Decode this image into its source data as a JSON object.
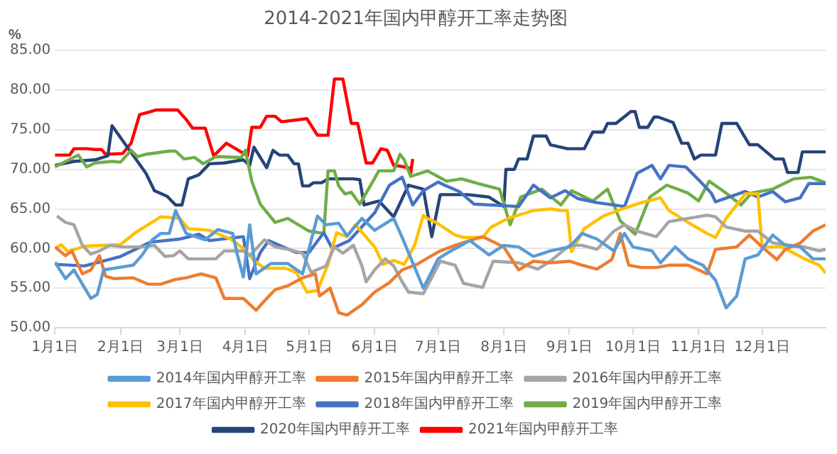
{
  "chart_data": {
    "type": "line",
    "title": "2014-2021年国内甲醇开工率走势图",
    "ylabel": "%",
    "xlim": [
      "--01-01",
      "--12-31"
    ],
    "ylim": [
      50,
      85
    ],
    "xticks": [
      {
        "value": "--01-01",
        "label": "1月1日"
      },
      {
        "value": "--02-01",
        "label": "2月1日"
      },
      {
        "value": "--03-01",
        "label": "3月1日"
      },
      {
        "value": "--04-01",
        "label": "4月1日"
      },
      {
        "value": "--05-01",
        "label": "5月1日"
      },
      {
        "value": "--06-01",
        "label": "6月1日"
      },
      {
        "value": "--07-01",
        "label": "7月1日"
      },
      {
        "value": "--08-01",
        "label": "8月1日"
      },
      {
        "value": "--09-01",
        "label": "9月1日"
      },
      {
        "value": "--10-01",
        "label": "10月1日"
      },
      {
        "value": "--11-01",
        "label": "11月1日"
      },
      {
        "value": "--12-01",
        "label": "12月1日"
      }
    ],
    "yticks": [
      {
        "value": 50,
        "label": "50.00"
      },
      {
        "value": 55,
        "label": "55.00"
      },
      {
        "value": 60,
        "label": "60.00"
      },
      {
        "value": 65,
        "label": "65.00"
      },
      {
        "value": 70,
        "label": "70.00"
      },
      {
        "value": 75,
        "label": "75.00"
      },
      {
        "value": 80,
        "label": "80.00"
      },
      {
        "value": 85,
        "label": "85.00"
      }
    ],
    "grid": "y",
    "legend": "bottom",
    "marker": "none",
    "line_style": "solid",
    "series": [
      {
        "name": "2014年国内甲醇开工率",
        "color": "#5b9bd5",
        "x": [
          "--01-01",
          "--01-06",
          "--01-10",
          "--01-14",
          "--01-18",
          "--01-21",
          "--01-24",
          "--01-31",
          "--02-07",
          "--02-11",
          "--02-16",
          "--02-20",
          "--02-24",
          "--02-27",
          "--03-04",
          "--03-13",
          "--03-19",
          "--03-26",
          "--03-28",
          "--03-31",
          "--04-03",
          "--04-06",
          "--04-13",
          "--04-21",
          "--04-28",
          "--05-02",
          "--05-05",
          "--05-09",
          "--05-15",
          "--05-19",
          "--05-26",
          "--06-01",
          "--06-10",
          "--06-14",
          "--06-24",
          "--07-01",
          "--07-07",
          "--07-16",
          "--07-25",
          "--08-01",
          "--08-08",
          "--08-15",
          "--08-23",
          "--09-01",
          "--09-07",
          "--09-14",
          "--09-22",
          "--09-27",
          "--10-01",
          "--10-10",
          "--10-14",
          "--10-21",
          "--10-27",
          "--11-03",
          "--11-09",
          "--11-14",
          "--11-19",
          "--11-23",
          "--11-29",
          "--12-06",
          "--12-12",
          "--12-19",
          "--12-25",
          "--12-31"
        ],
        "values": [
          58.3,
          56.2,
          57.3,
          55.5,
          53.7,
          54.2,
          57.3,
          57.6,
          57.9,
          59.1,
          61.1,
          61.9,
          61.9,
          64.8,
          61.9,
          61.1,
          62.4,
          61.9,
          59.4,
          56.4,
          63,
          56.8,
          58.1,
          58.1,
          56.8,
          61,
          64.1,
          63,
          63.2,
          61.6,
          63.8,
          62.3,
          63.8,
          61.4,
          55,
          58.7,
          59.7,
          61,
          59.2,
          60.4,
          60.2,
          59,
          59.7,
          60.2,
          61.9,
          61.2,
          59.7,
          61.9,
          60.2,
          59.7,
          58.2,
          60.2,
          58.7,
          57.9,
          56,
          52.5,
          54,
          58.7,
          59.2,
          61.7,
          60.4,
          60.2,
          58.7,
          58.7
        ]
      },
      {
        "name": "2015年国内甲醇开工率",
        "color": "#ed7d31",
        "x": [
          "--01-01",
          "--01-06",
          "--01-09",
          "--01-14",
          "--01-18",
          "--01-22",
          "--01-25",
          "--01-29",
          "--02-07",
          "--02-14",
          "--02-20",
          "--02-27",
          "--03-04",
          "--03-11",
          "--03-18",
          "--03-22",
          "--03-31",
          "--04-06",
          "--04-10",
          "--04-15",
          "--04-21",
          "--04-28",
          "--05-04",
          "--05-06",
          "--05-11",
          "--05-15",
          "--05-19",
          "--05-26",
          "--06-01",
          "--06-08",
          "--06-14",
          "--06-21",
          "--06-28",
          "--07-02",
          "--07-09",
          "--07-16",
          "--07-22",
          "--08-01",
          "--08-08",
          "--08-15",
          "--08-23",
          "--09-01",
          "--09-07",
          "--09-14",
          "--09-21",
          "--09-25",
          "--09-29",
          "--10-05",
          "--10-12",
          "--10-18",
          "--10-27",
          "--11-05",
          "--11-09",
          "--11-19",
          "--11-25",
          "--12-01",
          "--12-08",
          "--12-12",
          "--12-19",
          "--12-25",
          "--12-31"
        ],
        "values": [
          60.2,
          59.1,
          59.7,
          56.8,
          57.3,
          59.1,
          56.5,
          56.2,
          56.3,
          55.5,
          55.5,
          56.1,
          56.3,
          56.8,
          56.3,
          53.7,
          53.7,
          52.2,
          53.4,
          54.8,
          55.3,
          56.3,
          56.8,
          54,
          55,
          51.9,
          51.6,
          52.9,
          54.5,
          55.7,
          57.3,
          58,
          59.1,
          59.7,
          60.4,
          61,
          61.5,
          60.2,
          57.3,
          58.4,
          58.2,
          58.4,
          57.9,
          57.4,
          58.6,
          61.9,
          57.9,
          57.6,
          57.6,
          57.9,
          57.9,
          56.8,
          59.9,
          60.2,
          61.7,
          60.2,
          58.6,
          59.9,
          60.7,
          62.2,
          63
        ]
      },
      {
        "name": "2016年国内甲醇开工率",
        "color": "#a5a5a5",
        "x": [
          "--01-02",
          "--01-06",
          "--01-10",
          "--01-14",
          "--01-18",
          "--01-22",
          "--01-27",
          "--02-02",
          "--02-11",
          "--02-17",
          "--02-22",
          "--02-26",
          "--03-01",
          "--03-05",
          "--03-18",
          "--03-22",
          "--03-31",
          "--04-03",
          "--04-10",
          "--04-15",
          "--04-21",
          "--04-28",
          "--05-02",
          "--05-09",
          "--05-13",
          "--05-17",
          "--05-22",
          "--05-26",
          "--05-28",
          "--06-01",
          "--06-06",
          "--06-10",
          "--06-14",
          "--06-17",
          "--06-24",
          "--07-02",
          "--07-09",
          "--07-13",
          "--07-22",
          "--07-27",
          "--08-08",
          "--08-17",
          "--08-23",
          "--09-01",
          "--09-07",
          "--09-14",
          "--09-22",
          "--09-27",
          "--10-03",
          "--10-12",
          "--10-18",
          "--10-27",
          "--11-05",
          "--11-09",
          "--11-14",
          "--11-23",
          "--11-29",
          "--12-06",
          "--12-15",
          "--12-21",
          "--12-28",
          "--12-31"
        ],
        "values": [
          64.1,
          63.3,
          63,
          60.4,
          59.3,
          59.7,
          60.4,
          60.2,
          60.2,
          60.4,
          59,
          59.1,
          59.7,
          58.7,
          58.7,
          59.7,
          59.7,
          59.1,
          61.1,
          60.2,
          59.9,
          59.4,
          57,
          57.8,
          60.2,
          59.4,
          60.4,
          57.8,
          55.8,
          57.3,
          58.7,
          57.8,
          55.8,
          54.5,
          54.3,
          58.4,
          57.9,
          55.6,
          55.1,
          58.4,
          58.2,
          57.4,
          58.4,
          60.4,
          60.4,
          59.9,
          62.2,
          63,
          62.2,
          61.5,
          63.4,
          63.8,
          64.2,
          64,
          62.7,
          62.2,
          62.2,
          60.7,
          60.4,
          60.2,
          59.7,
          59.9
        ]
      },
      {
        "name": "2017年国内甲醇开工率",
        "color": "#ffc000",
        "x": [
          "--01-01",
          "--01-04",
          "--01-07",
          "--01-15",
          "--02-01",
          "--02-08",
          "--02-14",
          "--02-20",
          "--03-01",
          "--03-05",
          "--03-15",
          "--03-25",
          "--04-01",
          "--04-05",
          "--04-10",
          "--04-20",
          "--04-25",
          "--04-30",
          "--05-05",
          "--05-10",
          "--05-14",
          "--05-19",
          "--05-23",
          "--06-01",
          "--06-05",
          "--06-10",
          "--06-15",
          "--06-20",
          "--06-24",
          "--06-26",
          "--06-30",
          "--07-09",
          "--07-13",
          "--07-22",
          "--07-26",
          "--08-03",
          "--08-15",
          "--08-23",
          "--08-28",
          "--08-31",
          "--09-02",
          "--09-08",
          "--09-17",
          "--09-26",
          "--10-05",
          "--10-14",
          "--10-18",
          "--10-27",
          "--11-05",
          "--11-09",
          "--11-14",
          "--11-23",
          "--11-29",
          "--12-01",
          "--12-10",
          "--12-14",
          "--12-21",
          "--12-28",
          "--12-31"
        ],
        "values": [
          60,
          60.5,
          59.6,
          60.3,
          60.5,
          62,
          63,
          64,
          63.8,
          62.5,
          62.3,
          61.2,
          59.8,
          58.5,
          57.5,
          57.5,
          57,
          54.5,
          54.7,
          58,
          62,
          61.5,
          63,
          60.2,
          58,
          58.5,
          58,
          60.5,
          64.2,
          63.8,
          63.3,
          61.7,
          61.4,
          61.4,
          62.7,
          63.8,
          64.8,
          65,
          64.8,
          64.8,
          59.6,
          62.5,
          64.1,
          65,
          65.8,
          66.4,
          64.8,
          63.3,
          61.9,
          61.4,
          63.8,
          66.9,
          66.9,
          60.2,
          60.2,
          59.7,
          58.7,
          57.9,
          56.9
        ]
      },
      {
        "name": "2018年国内甲醇开工率",
        "color": "#4472c4",
        "x": [
          "--01-01",
          "--01-15",
          "--02-01",
          "--02-15",
          "--03-01",
          "--03-10",
          "--03-15",
          "--03-31",
          "--04-03",
          "--04-08",
          "--04-12",
          "--04-25",
          "--05-01",
          "--05-08",
          "--05-12",
          "--05-20",
          "--06-01",
          "--06-08",
          "--06-14",
          "--06-19",
          "--06-24",
          "--07-01",
          "--07-04",
          "--07-11",
          "--07-18",
          "--08-08",
          "--08-15",
          "--08-23",
          "--08-30",
          "--09-05",
          "--09-14",
          "--09-27",
          "--10-03",
          "--10-10",
          "--10-14",
          "--10-18",
          "--10-26",
          "--11-02",
          "--11-07",
          "--11-09",
          "--11-23",
          "--11-29",
          "--12-06",
          "--12-12",
          "--12-19",
          "--12-23",
          "--12-31"
        ],
        "values": [
          58,
          57.8,
          59,
          60.8,
          61.2,
          61.8,
          61,
          61.5,
          56.2,
          59.5,
          61,
          59.5,
          59.5,
          62,
          60,
          61,
          64.5,
          68,
          69,
          65.5,
          67.3,
          68.4,
          68,
          67.2,
          65.6,
          65.3,
          68,
          66.4,
          67.3,
          66.3,
          65.8,
          65.3,
          69.5,
          70.5,
          68.8,
          70.5,
          70.3,
          68.4,
          67,
          65.9,
          67.2,
          66.5,
          67.2,
          65.9,
          66.4,
          68.2,
          68.2
        ]
      },
      {
        "name": "2019年国内甲醇开工率",
        "color": "#70ad47",
        "x": [
          "--01-01",
          "--01-12",
          "--01-16",
          "--01-20",
          "--01-28",
          "--02-01",
          "--02-06",
          "--02-09",
          "--02-13",
          "--02-24",
          "--02-27",
          "--03-03",
          "--03-08",
          "--03-12",
          "--03-18",
          "--03-30",
          "--04-01",
          "--04-04",
          "--04-08",
          "--04-15",
          "--04-21",
          "--05-01",
          "--05-08",
          "--05-10",
          "--05-13",
          "--05-15",
          "--05-18",
          "--05-21",
          "--05-25",
          "--06-03",
          "--06-10",
          "--06-13",
          "--06-15",
          "--06-18",
          "--06-26",
          "--07-05",
          "--07-12",
          "--07-20",
          "--07-30",
          "--08-04",
          "--08-09",
          "--08-19",
          "--08-28",
          "--09-02",
          "--09-12",
          "--09-19",
          "--09-25",
          "--10-02",
          "--10-09",
          "--10-17",
          "--10-27",
          "--11-01",
          "--11-06",
          "--11-14",
          "--11-21",
          "--11-26",
          "--12-06",
          "--12-16",
          "--12-24",
          "--12-31"
        ],
        "values": [
          70.3,
          71.8,
          70.3,
          70.8,
          71,
          70.9,
          72.4,
          71.6,
          71.9,
          72.3,
          72.3,
          71.3,
          71.5,
          70.7,
          71.6,
          71.5,
          72.4,
          68.5,
          65.6,
          63.3,
          63.8,
          62.2,
          61.9,
          69.8,
          69.8,
          67.9,
          66.9,
          67.1,
          65.6,
          69.8,
          69.8,
          71.9,
          71.2,
          69.1,
          69.8,
          68.5,
          68.8,
          68.2,
          67.5,
          63,
          66.5,
          67.5,
          65.5,
          67.3,
          66,
          67.5,
          63.5,
          61.8,
          66.5,
          68,
          67,
          66,
          68.5,
          67,
          65.5,
          67,
          67.5,
          68.8,
          69,
          68.3
        ]
      },
      {
        "name": "2020年国内甲醇开工率",
        "color": "#264478",
        "x": [
          "--01-01",
          "--01-10",
          "--01-20",
          "--01-26",
          "--01-28",
          "--02-05",
          "--02-13",
          "--02-17",
          "--02-23",
          "--02-27",
          "--03-02",
          "--03-05",
          "--03-10",
          "--03-15",
          "--03-22",
          "--03-31",
          "--04-03",
          "--04-05",
          "--04-11",
          "--04-14",
          "--04-17",
          "--04-21",
          "--04-24",
          "--04-26",
          "--04-28",
          "--05-01",
          "--05-03",
          "--05-07",
          "--05-10",
          "--05-22",
          "--05-25",
          "--05-27",
          "--06-03",
          "--06-10",
          "--06-17",
          "--06-24",
          "--06-28",
          "--07-02",
          "--07-15",
          "--07-25",
          "--08-01",
          "--08-02",
          "--08-06",
          "--08-08",
          "--08-12",
          "--08-15",
          "--08-21",
          "--08-23",
          "--08-31",
          "--09-08",
          "--09-12",
          "--09-17",
          "--09-19",
          "--09-23",
          "--09-30",
          "--10-02",
          "--10-04",
          "--10-08",
          "--10-11",
          "--10-13",
          "--10-20",
          "--10-24",
          "--10-27",
          "--10-30",
          "--11-02",
          "--11-09",
          "--11-12",
          "--11-19",
          "--11-25",
          "--11-29",
          "--12-07",
          "--12-11",
          "--12-13",
          "--12-18",
          "--12-20",
          "--12-31"
        ],
        "values": [
          70.5,
          71,
          71.2,
          71.7,
          75.5,
          72.5,
          69.5,
          67.3,
          66.6,
          65.5,
          65.5,
          68.8,
          69.3,
          70.7,
          70.8,
          71.2,
          70.5,
          72.8,
          70.2,
          72.4,
          71.8,
          71.8,
          70.7,
          70.7,
          67.9,
          67.9,
          68.3,
          68.3,
          68.8,
          68.8,
          68.7,
          65.5,
          66,
          64,
          68,
          67.5,
          61.5,
          66.8,
          66.8,
          66.5,
          65.3,
          70,
          70,
          71.3,
          71.3,
          74.2,
          74.2,
          73.1,
          72.6,
          72.6,
          74.7,
          74.7,
          75.8,
          75.8,
          77.3,
          77.3,
          75.3,
          75.3,
          76.6,
          76.6,
          75.9,
          73.3,
          73.3,
          71.3,
          71.8,
          71.8,
          75.8,
          75.8,
          73.1,
          73.1,
          71.3,
          71.3,
          69.6,
          69.6,
          72.2,
          72.2
        ]
      },
      {
        "name": "2021年国内甲醇开工率",
        "color": "#ff0000",
        "x": [
          "--01-01",
          "--01-08",
          "--01-10",
          "--01-16",
          "--01-20",
          "--01-23",
          "--01-25",
          "--02-02",
          "--02-06",
          "--02-10",
          "--02-14",
          "--02-18",
          "--02-28",
          "--03-04",
          "--03-07",
          "--03-13",
          "--03-17",
          "--03-23",
          "--04-02",
          "--04-04",
          "--04-08",
          "--04-11",
          "--04-15",
          "--04-18",
          "--04-24",
          "--04-30",
          "--05-05",
          "--05-10",
          "--05-13",
          "--05-17",
          "--05-21",
          "--05-24",
          "--05-28",
          "--05-31",
          "--06-04",
          "--06-07",
          "--06-10",
          "--06-13",
          "--06-17",
          "--06-18",
          "--06-19"
        ],
        "values": [
          71.8,
          71.8,
          72.6,
          72.6,
          72.5,
          72.5,
          71.9,
          72,
          73.3,
          76.9,
          77.2,
          77.5,
          77.5,
          76.3,
          75.2,
          75.2,
          71.7,
          73.3,
          71.7,
          75.3,
          75.3,
          76.7,
          76.7,
          76,
          76.2,
          76.4,
          74.3,
          74.3,
          81.4,
          81.4,
          75.8,
          75.8,
          70.8,
          70.8,
          72.6,
          72.4,
          70.5,
          70.4,
          70.2,
          69.5,
          71.3
        ]
      }
    ]
  }
}
